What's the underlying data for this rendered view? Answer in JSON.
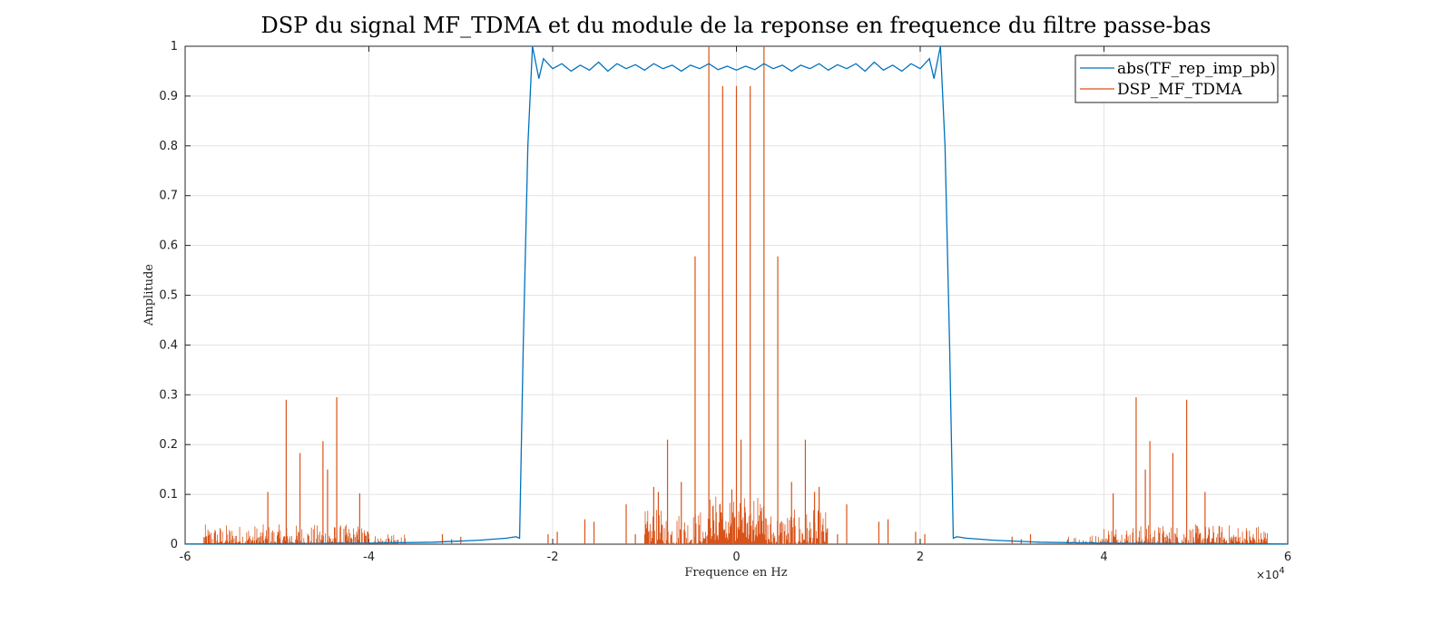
{
  "chart_data": {
    "type": "line",
    "title": "DSP du signal MF_TDMA et du module de la reponse en frequence du filtre passe-bas",
    "xlabel": "Frequence en Hz",
    "ylabel": "Amplitude",
    "xlim": [
      -60000,
      60000
    ],
    "ylim": [
      0,
      1
    ],
    "x_exponent_label": "×10",
    "x_exponent_power": "4",
    "x_tick_values": [
      -60000,
      -40000,
      -20000,
      0,
      20000,
      40000,
      60000
    ],
    "x_tick_labels": [
      "-6",
      "-4",
      "-2",
      "0",
      "2",
      "4",
      "6"
    ],
    "y_tick_values": [
      0,
      0.1,
      0.2,
      0.3,
      0.4,
      0.5,
      0.6,
      0.7,
      0.8,
      0.9,
      1
    ],
    "y_tick_labels": [
      "0",
      "0.1",
      "0.2",
      "0.3",
      "0.4",
      "0.5",
      "0.6",
      "0.7",
      "0.8",
      "0.9",
      "1"
    ],
    "grid": true,
    "legend_position": "top-right",
    "series": [
      {
        "name": "abs(TF_rep_imp_pb)",
        "color": "#0072BD",
        "x": [
          -60000,
          -50000,
          -40000,
          -33000,
          -28000,
          -25000,
          -24000,
          -23600,
          -23200,
          -22700,
          -22200,
          -21500,
          -21000,
          -20000,
          -19000,
          -18000,
          -17000,
          -16000,
          -15000,
          -14000,
          -13000,
          -12000,
          -11000,
          -10000,
          -9000,
          -8000,
          -7000,
          -6000,
          -5000,
          -4000,
          -3000,
          -2000,
          -1000,
          0,
          1000,
          2000,
          3000,
          4000,
          5000,
          6000,
          7000,
          8000,
          9000,
          10000,
          11000,
          12000,
          13000,
          14000,
          15000,
          16000,
          17000,
          18000,
          19000,
          20000,
          21000,
          21500,
          22200,
          22700,
          23200,
          23600,
          24000,
          25000,
          28000,
          33000,
          40000,
          50000,
          60000
        ],
        "y": [
          0.0005,
          0.001,
          0.002,
          0.004,
          0.008,
          0.012,
          0.015,
          0.012,
          0.4,
          0.8,
          1.0,
          0.935,
          0.975,
          0.955,
          0.965,
          0.95,
          0.962,
          0.952,
          0.968,
          0.95,
          0.965,
          0.955,
          0.963,
          0.952,
          0.965,
          0.955,
          0.962,
          0.95,
          0.962,
          0.955,
          0.965,
          0.953,
          0.96,
          0.952,
          0.96,
          0.953,
          0.965,
          0.955,
          0.962,
          0.95,
          0.962,
          0.955,
          0.965,
          0.952,
          0.963,
          0.955,
          0.965,
          0.95,
          0.968,
          0.952,
          0.962,
          0.95,
          0.965,
          0.955,
          0.975,
          0.935,
          1.0,
          0.8,
          0.4,
          0.012,
          0.015,
          0.012,
          0.008,
          0.004,
          0.002,
          0.001,
          0.0005
        ]
      },
      {
        "name": "DSP_MF_TDMA",
        "color": "#D95319",
        "peaks_x": [
          -51000,
          -49000,
          -47500,
          -45000,
          -44500,
          -43500,
          -41000,
          -32000,
          -31000,
          -30000,
          -20500,
          -19500,
          -16500,
          -15500,
          -12000,
          -11000,
          -9000,
          -8500,
          -7500,
          -6000,
          -4500,
          -3000,
          -1500,
          -500,
          0,
          500,
          1500,
          3000,
          4500,
          6000,
          7500,
          8500,
          9000,
          11000,
          12000,
          15500,
          16500,
          19500,
          20500,
          30000,
          31000,
          32000,
          41000,
          43500,
          44500,
          45000,
          47500,
          49000,
          51000
        ],
        "peaks_y": [
          0.105,
          0.29,
          0.183,
          0.207,
          0.15,
          0.295,
          0.102,
          0.02,
          0.01,
          0.015,
          0.02,
          0.025,
          0.05,
          0.045,
          0.08,
          0.02,
          0.115,
          0.105,
          0.21,
          0.125,
          0.578,
          1.0,
          0.92,
          0.11,
          0.92,
          0.21,
          0.92,
          1.0,
          0.578,
          0.125,
          0.21,
          0.105,
          0.115,
          0.02,
          0.08,
          0.045,
          0.05,
          0.025,
          0.02,
          0.015,
          0.01,
          0.02,
          0.102,
          0.295,
          0.15,
          0.207,
          0.183,
          0.29,
          0.105
        ],
        "noise_bands": [
          {
            "x": [
              -58000,
              -40000
            ],
            "max": 0.04
          },
          {
            "x": [
              -40000,
              -36000
            ],
            "max": 0.02
          },
          {
            "x": [
              -10000,
              10000
            ],
            "max": 0.07
          },
          {
            "x": [
              -3000,
              3000
            ],
            "max": 0.1
          },
          {
            "x": [
              36000,
              40000
            ],
            "max": 0.02
          },
          {
            "x": [
              40000,
              58000
            ],
            "max": 0.04
          }
        ]
      }
    ]
  }
}
